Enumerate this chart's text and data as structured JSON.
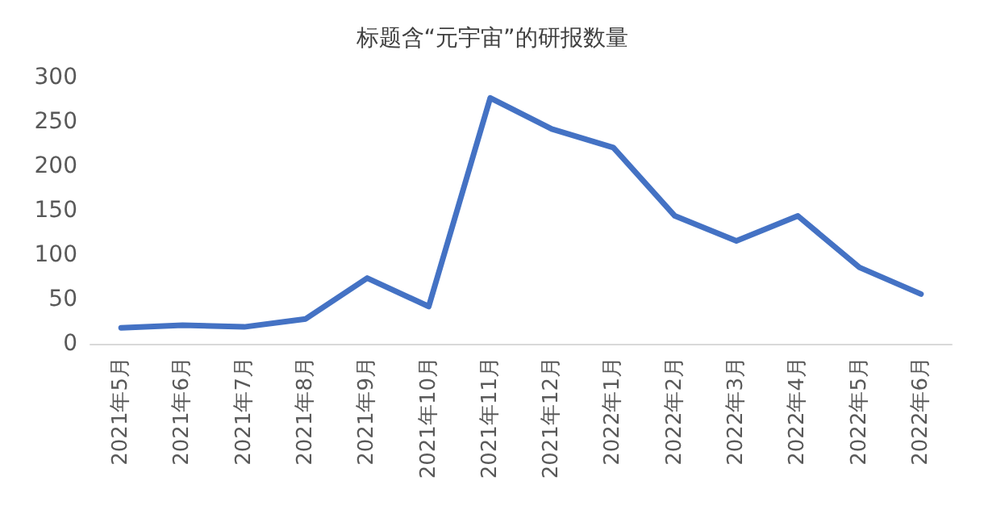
{
  "chart_data": {
    "type": "line",
    "title": "标题含“元宇宙”的研报数量",
    "categories": [
      "2021年5月",
      "2021年6月",
      "2021年7月",
      "2021年8月",
      "2021年9月",
      "2021年10月",
      "2021年11月",
      "2021年12月",
      "2022年1月",
      "2022年2月",
      "2022年3月",
      "2022年4月",
      "2022年5月",
      "2022年6月"
    ],
    "series": [
      {
        "color": "#4472c4",
        "values": [
          18,
          21,
          19,
          28,
          74,
          42,
          277,
          242,
          221,
          144,
          116,
          144,
          86,
          56
        ]
      }
    ],
    "ylim": [
      0,
      300
    ],
    "yticks": [
      0,
      50,
      100,
      150,
      200,
      250,
      300
    ],
    "grid": false,
    "marker": "none",
    "line_style": "solid"
  }
}
